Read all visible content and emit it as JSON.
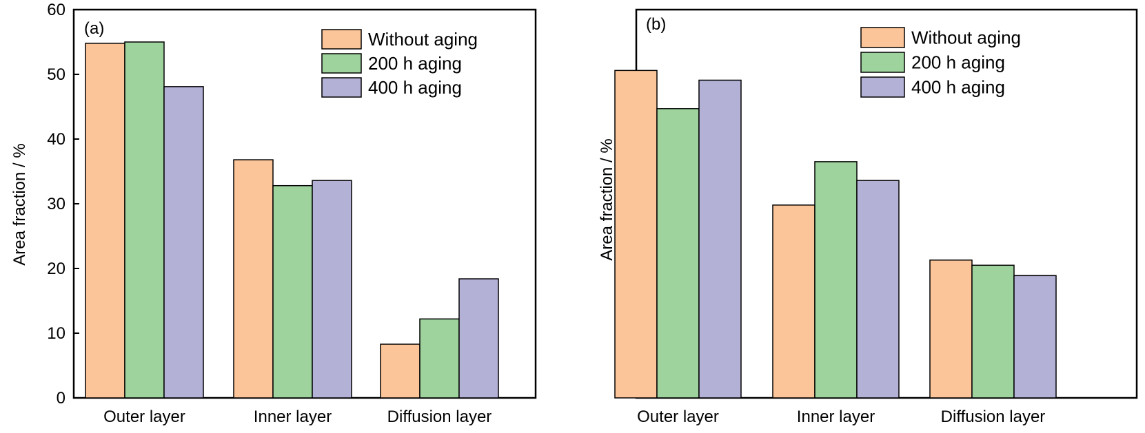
{
  "chart_data": [
    {
      "type": "bar",
      "panel_label": "(a)",
      "ylabel": "Area fraction / %",
      "ylim": [
        0,
        60
      ],
      "yticks": [
        "0",
        "10",
        "20",
        "30",
        "40",
        "50",
        "60"
      ],
      "categories": [
        "Outer layer",
        "Inner layer",
        "Diffusion layer"
      ],
      "series": [
        {
          "name": "Without aging",
          "values": [
            54.8,
            36.8,
            8.3
          ]
        },
        {
          "name": "200 h aging",
          "values": [
            55.0,
            32.8,
            12.2
          ]
        },
        {
          "name": "400 h aging",
          "values": [
            48.1,
            33.6,
            18.4
          ]
        }
      ],
      "legend_position": "top-right",
      "grid": false
    },
    {
      "type": "bar",
      "panel_label": "(b)",
      "ylabel": "Area fraction / %",
      "ylim": [
        0,
        60
      ],
      "yticks": [],
      "categories": [
        "Outer layer",
        "Inner layer",
        "Diffusion layer"
      ],
      "series": [
        {
          "name": "Without aging",
          "values": [
            50.6,
            29.8,
            21.3
          ]
        },
        {
          "name": "200 h aging",
          "values": [
            44.7,
            36.5,
            20.5
          ]
        },
        {
          "name": "400 h aging",
          "values": [
            49.1,
            33.6,
            18.9
          ]
        }
      ],
      "legend_position": "top-right",
      "grid": false
    }
  ],
  "colors": {
    "series": [
      "#fcc599",
      "#9ed39e",
      "#b4b1d7"
    ],
    "axis": "#000000"
  }
}
